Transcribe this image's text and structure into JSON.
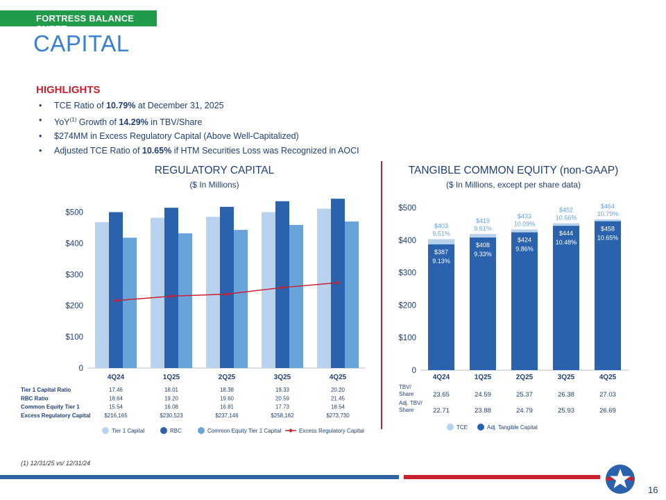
{
  "header": {
    "section": "FORTRESS BALANCE SHEET",
    "title": "CAPITAL"
  },
  "highlights": {
    "heading": "HIGHLIGHTS",
    "items": [
      {
        "pre": "TCE Ratio of ",
        "bold": "10.79%",
        "post": " at December 31, 2025"
      },
      {
        "pre": "YoY",
        "sup": "(1)",
        "mid": " Growth of ",
        "bold": "14.29%",
        "post": " in TBV/Share"
      },
      {
        "pre": "",
        "bold": "",
        "post": "$274MM in Excess Regulatory Capital (Above Well-Capitalized)"
      },
      {
        "pre": "Adjusted TCE Ratio of ",
        "bold": "10.65%",
        "post": " if HTM Securities Loss was Recognized in AOCI"
      }
    ]
  },
  "regulatory": {
    "title": "REGULATORY CAPITAL",
    "subtitle": "($ In Millions)",
    "table": {
      "rows": [
        {
          "label": "Tier 1 Capital Ratio",
          "values": [
            "17.46",
            "18.01",
            "18.38",
            "19.33",
            "20.20"
          ]
        },
        {
          "label": "RBC Ratio",
          "values": [
            "18.64",
            "19.20",
            "19.60",
            "20.59",
            "21.45"
          ]
        },
        {
          "label": "Common Equity Tier 1",
          "values": [
            "15.54",
            "16.08",
            "16.81",
            "17.73",
            "18.54"
          ]
        },
        {
          "label": "Excess Regulatory Capital",
          "values": [
            "$216,165",
            "$230,523",
            "$237,146",
            "$258,162",
            "$273,730"
          ]
        }
      ]
    },
    "legend": [
      "Tier 1 Capital",
      "RBC",
      "Common Equity Tier 1 Capital",
      "Excess Regulatory Capital"
    ]
  },
  "tce": {
    "title": "TANGIBLE COMMON EQUITY (non-GAAP)",
    "subtitle": "($ In Millions, except per share data)",
    "table": {
      "rows": [
        {
          "label1": "TBV/",
          "label2": "Share",
          "values": [
            "23.65",
            "24.59",
            "25.37",
            "26.38",
            "27.03"
          ]
        },
        {
          "label1": "Adj. TBV/",
          "label2": "Share",
          "values": [
            "22.71",
            "23.88",
            "24.79",
            "25.93",
            "26.69"
          ]
        }
      ]
    },
    "legend": [
      "TCE",
      "Adj. Tangible Capital"
    ]
  },
  "chart_data": [
    {
      "type": "bar",
      "title": "REGULATORY CAPITAL",
      "subtitle": "($ In Millions)",
      "categories": [
        "4Q24",
        "1Q25",
        "2Q25",
        "3Q25",
        "4Q25"
      ],
      "yticks": [
        "$500",
        "$400",
        "$300",
        "$200",
        "$100",
        "0"
      ],
      "ylim": [
        0,
        550
      ],
      "series": [
        {
          "name": "Tier 1 Capital",
          "type": "bar",
          "color": "#b9d3ee",
          "values": [
            468,
            482,
            485,
            500,
            511
          ]
        },
        {
          "name": "RBC",
          "type": "bar",
          "color": "#2b62ad",
          "values": [
            500,
            514,
            517,
            535,
            543
          ]
        },
        {
          "name": "Common Equity Tier 1 Capital",
          "type": "bar",
          "color": "#6aa2da",
          "values": [
            418,
            432,
            443,
            459,
            470
          ]
        },
        {
          "name": "Excess Regulatory Capital",
          "type": "line",
          "color": "#c8202f",
          "values": [
            216.165,
            230.523,
            237.146,
            258.162,
            273.73
          ]
        }
      ]
    },
    {
      "type": "bar",
      "title": "TANGIBLE COMMON EQUITY (non-GAAP)",
      "subtitle": "($ In Millions, except per share data)",
      "categories": [
        "4Q24",
        "1Q25",
        "2Q25",
        "3Q25",
        "4Q25"
      ],
      "yticks": [
        "$500",
        "$400",
        "$300",
        "$200",
        "$100",
        "0"
      ],
      "ylim": [
        0,
        500
      ],
      "series": [
        {
          "name": "TCE",
          "color": "#b9d3ee",
          "values": [
            403,
            419,
            433,
            452,
            464
          ],
          "value_labels": [
            "$403",
            "$419",
            "$433",
            "$452",
            "$464"
          ],
          "ratio_labels": [
            "9.51%",
            "9.61%",
            "10.09%",
            "10.66%",
            "10.79%"
          ]
        },
        {
          "name": "Adj. Tangible Capital",
          "color": "#2b62ad",
          "values": [
            387,
            408,
            424,
            444,
            458
          ],
          "value_labels": [
            "$387",
            "$408",
            "$424",
            "$444",
            "$458"
          ],
          "ratio_labels": [
            "9.13%",
            "9.33%",
            "9.86%",
            "10.48%",
            "10.65%"
          ]
        }
      ]
    }
  ],
  "footer": {
    "footnote": "(1) 12/31/25 vs/ 12/31/24",
    "page": "16"
  }
}
